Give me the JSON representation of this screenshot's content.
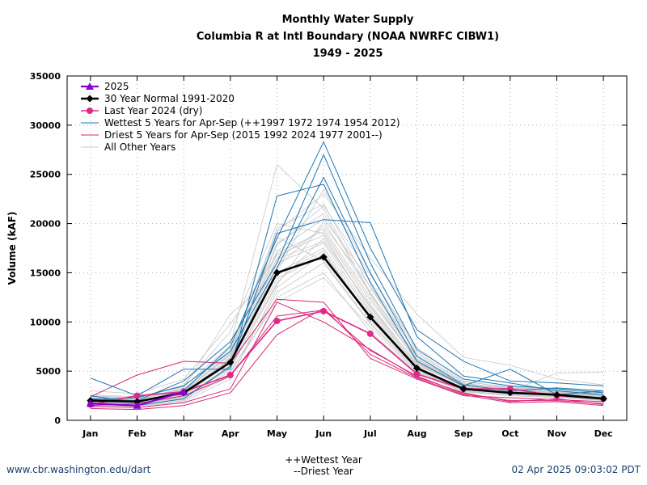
{
  "title": {
    "line1": "Monthly Water Supply",
    "line2": "Columbia R at Intl Boundary (NOAA NWRFC CIBW1)",
    "line3": "1949 - 2025"
  },
  "footer": {
    "left": "www.cbr.washington.edu/dart",
    "right": "02 Apr 2025 09:03:02 PDT",
    "note1": "++Wettest Year",
    "note2": "--Driest Year"
  },
  "colors": {
    "current": "#8b00d4",
    "normal": "#000000",
    "last_year": "#e0288a",
    "wettest": "#1f77b4",
    "driest": "#d62776",
    "other": "#c8c8c8"
  },
  "chart_data": {
    "type": "line",
    "ylabel": "Volume (kAF)",
    "xlabel": "",
    "categories": [
      "Jan",
      "Feb",
      "Mar",
      "Apr",
      "May",
      "Jun",
      "Jul",
      "Aug",
      "Sep",
      "Oct",
      "Nov",
      "Dec"
    ],
    "ylim": [
      0,
      35000
    ],
    "yticks": [
      "0",
      "5000",
      "10000",
      "15000",
      "20000",
      "25000",
      "30000",
      "35000"
    ],
    "grid": true,
    "legend_position": "top-left",
    "legend": [
      "2025",
      "30 Year Normal 1991-2020",
      "Last Year 2024 (dry)",
      "Wettest 5 Years for Apr-Sep (++1997 1972 1974 1954 2012)",
      "Driest 5 Years for Apr-Sep (2015 1992 2024 1977 2001--)",
      "All Other Years"
    ],
    "series": [
      {
        "name": "2025",
        "values": [
          1700,
          1500,
          2900,
          null,
          null,
          null,
          null,
          null,
          null,
          null,
          null,
          null
        ]
      },
      {
        "name": "30 Year Normal 1991-2020",
        "values": [
          2000,
          1900,
          2800,
          5900,
          15000,
          16600,
          10500,
          5300,
          3200,
          2800,
          2600,
          2200
        ]
      },
      {
        "name": "Last Year 2024 (dry)",
        "values": [
          1600,
          2500,
          2900,
          4600,
          10100,
          11100,
          8800,
          4700,
          3200,
          3200,
          2500,
          2200
        ]
      }
    ],
    "wettest": [
      {
        "values": [
          4300,
          2500,
          5200,
          5200,
          22800,
          24000,
          14000,
          6000,
          3500,
          5200,
          2600,
          3000
        ]
      },
      {
        "values": [
          2500,
          1800,
          3000,
          7500,
          18500,
          28300,
          17500,
          9200,
          6000,
          4000,
          3800,
          3500
        ]
      },
      {
        "values": [
          2200,
          2000,
          4000,
          8000,
          16000,
          27000,
          16000,
          7200,
          4200,
          3500,
          3200,
          2800
        ]
      },
      {
        "values": [
          1800,
          1500,
          2200,
          5500,
          19000,
          20400,
          20100,
          8500,
          4500,
          3800,
          3000,
          2600
        ]
      },
      {
        "values": [
          2100,
          2300,
          3500,
          7000,
          15500,
          24700,
          15000,
          6500,
          3600,
          3000,
          3300,
          3000
        ]
      }
    ],
    "driest": [
      {
        "values": [
          2400,
          4600,
          6000,
          5800,
          12300,
          12000,
          6300,
          4200,
          2500,
          2300,
          2100,
          1900
        ]
      },
      {
        "values": [
          1500,
          1700,
          2500,
          4500,
          10600,
          11200,
          7100,
          4500,
          2700,
          2000,
          2000,
          1700
        ]
      },
      {
        "values": [
          1200,
          1100,
          1500,
          2800,
          8700,
          11400,
          6700,
          4300,
          2600,
          1800,
          1900,
          1500
        ]
      },
      {
        "values": [
          1400,
          1300,
          1800,
          3200,
          12000,
          10000,
          7200,
          4400,
          2800,
          1900,
          2200,
          1600
        ]
      }
    ],
    "others": [
      {
        "values": [
          1800,
          1600,
          2400,
          5200,
          14000,
          18500,
          11500,
          5500,
          3200,
          2800,
          2500,
          2200
        ]
      },
      {
        "values": [
          2200,
          1900,
          2700,
          6200,
          16500,
          19500,
          12500,
          6000,
          3400,
          3000,
          2700,
          2400
        ]
      },
      {
        "values": [
          1600,
          1500,
          2000,
          4800,
          13000,
          16000,
          9800,
          5000,
          3000,
          2600,
          2400,
          2000
        ]
      },
      {
        "values": [
          2500,
          2200,
          3200,
          7000,
          18000,
          21000,
          13000,
          6200,
          3600,
          3200,
          3000,
          2700
        ]
      },
      {
        "values": [
          1900,
          1700,
          2300,
          5600,
          15000,
          17500,
          10800,
          5200,
          3100,
          2700,
          2600,
          2300
        ]
      },
      {
        "values": [
          2100,
          2000,
          2900,
          6600,
          17200,
          20500,
          14200,
          6600,
          3700,
          3300,
          2800,
          2500
        ]
      },
      {
        "values": [
          1700,
          1600,
          2100,
          4500,
          12500,
          15000,
          9000,
          4800,
          2900,
          2500,
          2300,
          2000
        ]
      },
      {
        "values": [
          2300,
          2100,
          3000,
          6800,
          19500,
          22000,
          13500,
          6300,
          3500,
          3100,
          2900,
          2600
        ]
      },
      {
        "values": [
          2000,
          1800,
          2600,
          5800,
          16000,
          18000,
          11000,
          5400,
          3300,
          2900,
          2700,
          2300
        ]
      },
      {
        "values": [
          1500,
          1400,
          1900,
          4200,
          13500,
          17000,
          10500,
          5100,
          3000,
          2600,
          2400,
          2100
        ]
      },
      {
        "values": [
          2600,
          2400,
          3400,
          7600,
          26000,
          21500,
          12800,
          5900,
          3400,
          3000,
          2800,
          2500
        ]
      },
      {
        "values": [
          2200,
          2000,
          2800,
          6000,
          15200,
          23500,
          15000,
          7000,
          3900,
          3400,
          3100,
          2800
        ]
      },
      {
        "values": [
          1800,
          1700,
          2400,
          5400,
          14400,
          16800,
          10200,
          5300,
          3100,
          2700,
          2500,
          2200
        ]
      },
      {
        "values": [
          2400,
          2300,
          3600,
          9000,
          20000,
          19000,
          11800,
          5700,
          3500,
          3100,
          2900,
          2600
        ]
      },
      {
        "values": [
          1600,
          1500,
          2200,
          5000,
          12000,
          14500,
          9500,
          4900,
          2900,
          2600,
          2400,
          2100
        ]
      },
      {
        "values": [
          2000,
          1900,
          2700,
          6400,
          17800,
          21800,
          14800,
          7400,
          4000,
          3300,
          3000,
          2700
        ]
      },
      {
        "values": [
          3000,
          2700,
          4200,
          9800,
          16800,
          18800,
          11200,
          5600,
          3500,
          3300,
          3100,
          2900
        ]
      },
      {
        "values": [
          1900,
          1800,
          2500,
          5900,
          15600,
          19800,
          13600,
          6800,
          3800,
          3200,
          2900,
          2500
        ]
      },
      {
        "values": [
          2100,
          2200,
          3100,
          7200,
          18600,
          16200,
          9900,
          5200,
          3200,
          2900,
          2700,
          2400
        ]
      },
      {
        "values": [
          1700,
          1600,
          2300,
          5300,
          13800,
          20200,
          12900,
          6500,
          3600,
          3100,
          2800,
          2400
        ]
      },
      {
        "values": [
          2300,
          2100,
          3300,
          10800,
          14800,
          17200,
          10400,
          5300,
          3300,
          3000,
          4800,
          4900
        ]
      },
      {
        "values": [
          2500,
          2300,
          3000,
          6700,
          19200,
          23000,
          16500,
          10800,
          6400,
          5600,
          4200,
          3600
        ]
      },
      {
        "values": [
          1800,
          1700,
          2600,
          6100,
          16400,
          18200,
          11600,
          5800,
          3400,
          3000,
          2700,
          2300
        ]
      },
      {
        "values": [
          2000,
          1900,
          2800,
          6300,
          17000,
          19200,
          12200,
          6100,
          3500,
          3100,
          2800,
          2400
        ]
      }
    ]
  }
}
